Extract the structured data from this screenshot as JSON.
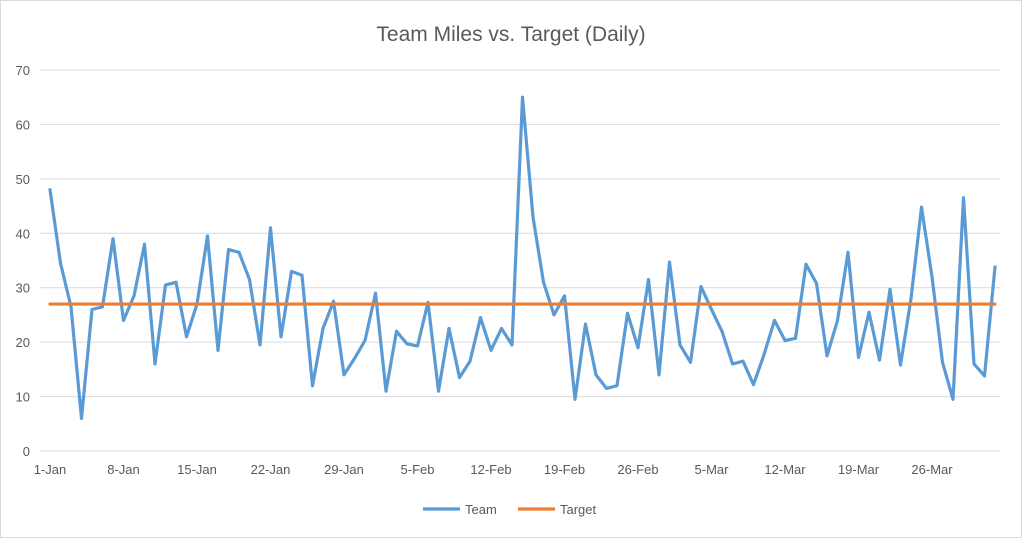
{
  "chart_data": {
    "type": "line",
    "title": "Team Miles vs. Target (Daily)",
    "xlabel": "",
    "ylabel": "",
    "ylim": [
      0,
      70
    ],
    "yticks": [
      0,
      10,
      20,
      30,
      40,
      50,
      60,
      70
    ],
    "grid": true,
    "legend_position": "bottom",
    "xtick_labels": [
      "1-Jan",
      "8-Jan",
      "15-Jan",
      "22-Jan",
      "29-Jan",
      "5-Feb",
      "12-Feb",
      "19-Feb",
      "26-Feb",
      "5-Mar",
      "12-Mar",
      "19-Mar",
      "26-Mar"
    ],
    "xtick_every_days": 7,
    "x_start": "1-Jan",
    "x_end": "1-Apr",
    "series": [
      {
        "name": "Team",
        "color": "#5b9bd5",
        "values": [
          48,
          34.5,
          26.5,
          6,
          26,
          26.5,
          39,
          24,
          28.5,
          38,
          16,
          30.5,
          31,
          21,
          27,
          39.5,
          18.5,
          37,
          36.5,
          31.5,
          19.5,
          41,
          21,
          33,
          32.3,
          12,
          22.5,
          27.5,
          14,
          17,
          20.3,
          29,
          11,
          22,
          19.7,
          19.3,
          27.3,
          11,
          22.5,
          13.5,
          16.5,
          24.5,
          18.5,
          22.5,
          19.5,
          65,
          43,
          31,
          25,
          28.5,
          9.5,
          23.3,
          14,
          11.5,
          12,
          25.3,
          19,
          31.5,
          14,
          34.7,
          19.5,
          16.3,
          30.2,
          26,
          22,
          16,
          16.5,
          12.2,
          17.7,
          24,
          20.3,
          20.7,
          34.3,
          30.8,
          17.5,
          24,
          36.5,
          17.2,
          25.5,
          16.7,
          29.7,
          15.8,
          28,
          44.8,
          32,
          16.3,
          9.5,
          46.5,
          16,
          13.8,
          33.8
        ]
      },
      {
        "name": "Target",
        "color": "#ed7d31",
        "constant": 27
      }
    ]
  }
}
